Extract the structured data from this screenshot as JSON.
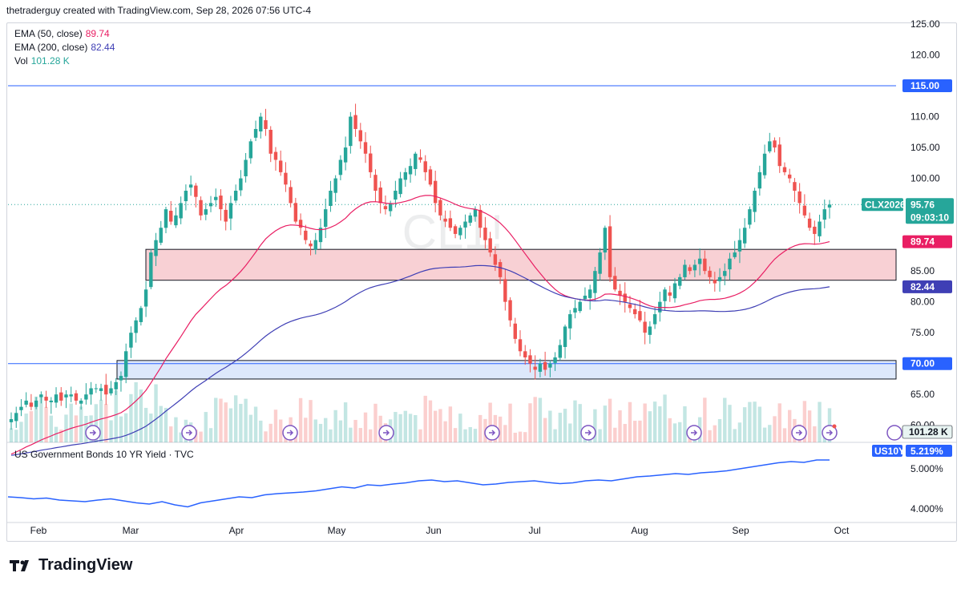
{
  "header": {
    "text": "thetraderguy created with TradingView.com, Sep 28, 2026 07:56 UTC-4"
  },
  "legend": {
    "ema50_label": "EMA (50, close)",
    "ema50_value": "89.74",
    "ema50_color": "#e91e63",
    "ema200_label": "EMA (200, close)",
    "ema200_value": "82.44",
    "ema200_color": "#3f3fb5",
    "vol_label": "Vol",
    "vol_value": "101.28 K",
    "vol_color": "#26a69a"
  },
  "watermark": "CL1!",
  "tags": {
    "symbol": "CLX2026",
    "price": "95.76",
    "countdown": "09:03:10",
    "res_115": "115.00",
    "sup_70": "70.00",
    "ema50": "89.74",
    "ema200": "82.44",
    "vol": "101.28 K",
    "us10y_symbol": "US10Y",
    "us10y_value": "5.219%"
  },
  "sub_legend": "US Government Bonds 10 YR Yield · TVC",
  "logo_text": "TradingView",
  "chart_data": {
    "type": "candlestick",
    "price_axis": [
      "125.00",
      "120.00",
      "115.00",
      "110.00",
      "105.00",
      "100.00",
      "85.00",
      "80.00",
      "75.00",
      "70.00",
      "65.00",
      "60.00"
    ],
    "price_range": [
      57.5,
      125
    ],
    "x_labels": [
      "Feb",
      "Mar",
      "Apr",
      "May",
      "Jun",
      "Jul",
      "Aug",
      "Sep",
      "Oct"
    ],
    "horizontal_levels": [
      115,
      70
    ],
    "zones": [
      {
        "low": 83.5,
        "high": 88.5,
        "color": "#f8d0d4"
      },
      {
        "low": 67.5,
        "high": 70.5,
        "color": "#dde8fb"
      }
    ],
    "ohlc_series": {
      "name": "CL1!",
      "closes": [
        61,
        62,
        63,
        64,
        63,
        64,
        65,
        64,
        64,
        65,
        64,
        65,
        65,
        64,
        64,
        65,
        66,
        66,
        66,
        65,
        66,
        67,
        68,
        72,
        75,
        77,
        79,
        82,
        88,
        90,
        92,
        95,
        93,
        94,
        96,
        98,
        99,
        97,
        94,
        95,
        96,
        97,
        95,
        93,
        96,
        98,
        100,
        103,
        106,
        108,
        110,
        108,
        104,
        103,
        101,
        99,
        96,
        93,
        92,
        90,
        89,
        90,
        92,
        95,
        98,
        100,
        103,
        105,
        110,
        108,
        106,
        104,
        101,
        98,
        96,
        95,
        96,
        98,
        100,
        101,
        102,
        104,
        103,
        101,
        99,
        96,
        94,
        93,
        92,
        91,
        92,
        93,
        94,
        95,
        92,
        90,
        88,
        86,
        84,
        80,
        77,
        74,
        72,
        71,
        70,
        69,
        70,
        69,
        70,
        71,
        73,
        76,
        78,
        79,
        80,
        81,
        82,
        85,
        88,
        92,
        84,
        82,
        81,
        80,
        79,
        78,
        77,
        75,
        76,
        78,
        80,
        82,
        81,
        83,
        84,
        86,
        85,
        86,
        87,
        85,
        84,
        83,
        84,
        85,
        87,
        88,
        90,
        92,
        95,
        98,
        101,
        104,
        106,
        105,
        102,
        101,
        100,
        98,
        96,
        94,
        92,
        91,
        93,
        95,
        95.76
      ],
      "volume_scale": "relative"
    },
    "ema50": {
      "name": "EMA (50, close)",
      "last": 89.74
    },
    "ema200": {
      "name": "EMA (200, close)",
      "last": 82.44
    },
    "us10y": {
      "name": "US Government Bonds 10 YR Yield · TVC",
      "axis": [
        "5.000%",
        "4.000%"
      ],
      "range": [
        3.7,
        5.5
      ],
      "values": [
        4.3,
        4.28,
        4.25,
        4.27,
        4.22,
        4.2,
        4.18,
        4.22,
        4.25,
        4.2,
        4.15,
        4.12,
        4.18,
        4.1,
        4.05,
        4.15,
        4.2,
        4.25,
        4.3,
        4.28,
        4.35,
        4.38,
        4.4,
        4.42,
        4.45,
        4.5,
        4.55,
        4.52,
        4.6,
        4.58,
        4.62,
        4.65,
        4.7,
        4.72,
        4.68,
        4.7,
        4.65,
        4.6,
        4.62,
        4.66,
        4.68,
        4.7,
        4.66,
        4.63,
        4.65,
        4.7,
        4.72,
        4.7,
        4.75,
        4.8,
        4.82,
        4.85,
        4.88,
        4.86,
        4.9,
        4.92,
        4.95,
        5.0,
        5.05,
        5.1,
        5.15,
        5.18,
        5.16,
        5.22,
        5.219
      ]
    }
  }
}
